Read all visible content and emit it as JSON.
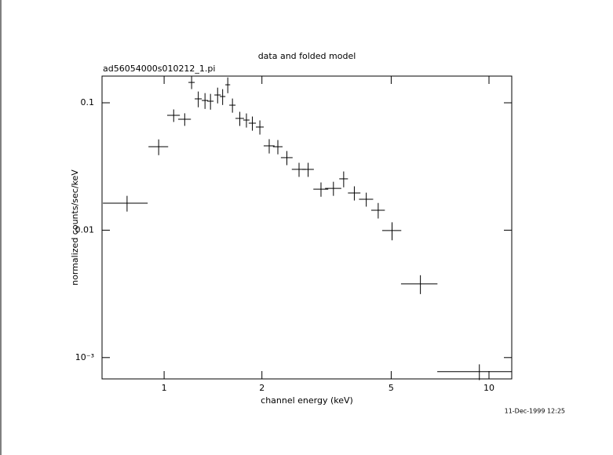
{
  "chart_data": {
    "type": "errorbar-scatter",
    "title": "data and folded model",
    "subtitle": "ad56054000s010212_1.pi",
    "x_label": "channel energy (keV)",
    "y_label": "normalized counts/sec/keV",
    "timestamp": "11-Dec-1999 12:25",
    "log_x": true,
    "log_y": true,
    "color": "#000000",
    "xlim": [
      0.644,
      11.75
    ],
    "xticks": [
      1,
      2,
      5,
      10
    ],
    "ylim": [
      0.00068,
      0.162
    ],
    "yticks": [
      0.1,
      0.01,
      {
        "value": 0.001,
        "label": "10⁻³"
      }
    ],
    "x": [
      0.769,
      0.962,
      1.07,
      1.157,
      1.215,
      1.274,
      1.336,
      1.389,
      1.461,
      1.514,
      1.57,
      1.623,
      1.71,
      1.792,
      1.869,
      1.971,
      2.106,
      2.239,
      2.387,
      2.602,
      2.775,
      3.04,
      3.32,
      3.57,
      3.85,
      4.19,
      4.56,
      5.03,
      6.15,
      9.34
    ],
    "xerr": [
      0.121,
      0.067,
      0.048,
      0.052,
      0.027,
      0.032,
      0.03,
      0.031,
      0.033,
      0.03,
      0.027,
      0.036,
      0.052,
      0.04,
      0.048,
      0.055,
      0.081,
      0.076,
      0.099,
      0.13,
      0.115,
      0.16,
      0.19,
      0.11,
      0.17,
      0.21,
      0.22,
      0.34,
      0.79,
      2.41
    ],
    "y": [
      0.0163,
      0.0452,
      0.0797,
      0.0743,
      0.1445,
      0.1074,
      0.1043,
      0.1029,
      0.1152,
      0.112,
      0.1385,
      0.0958,
      0.0754,
      0.0732,
      0.0692,
      0.0645,
      0.0459,
      0.0452,
      0.0371,
      0.03,
      0.03,
      0.021,
      0.0213,
      0.0253,
      0.0196,
      0.0175,
      0.01435,
      0.00993,
      0.00379,
      0.000775
    ],
    "yerr": [
      0.0023,
      0.0064,
      0.009,
      0.0084,
      0.0164,
      0.0152,
      0.0148,
      0.0146,
      0.0163,
      0.0159,
      0.0196,
      0.0122,
      0.0096,
      0.0093,
      0.0088,
      0.0082,
      0.0059,
      0.0058,
      0.0047,
      0.0038,
      0.0038,
      0.0027,
      0.0027,
      0.0036,
      0.0025,
      0.0022,
      0.002,
      0.0016,
      0.00064,
      0.00011
    ]
  }
}
